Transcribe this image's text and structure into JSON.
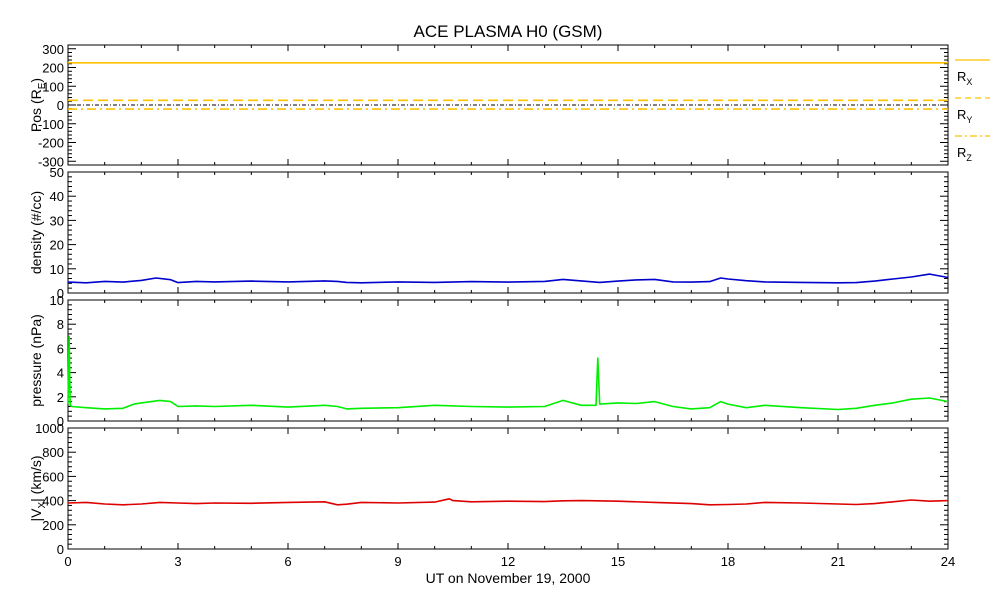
{
  "chart_data": {
    "title": "ACE PLASMA H0 (GSM)",
    "xlabel": "UT on November 19, 2000",
    "xlim": [
      0,
      24
    ],
    "xticks": [
      0,
      3,
      6,
      9,
      12,
      15,
      18,
      21,
      24
    ],
    "xtick_labels": [
      "0",
      "3",
      "6",
      "9",
      "12",
      "15",
      "18",
      "21",
      "24"
    ],
    "grid": false,
    "panels": [
      {
        "type": "line",
        "ylabel": "Pos (R",
        "ylabel_sub": "E",
        "ylabel_tail": ")",
        "ylim": [
          -320,
          320
        ],
        "yticks": [
          -300,
          -200,
          -100,
          0,
          100,
          200,
          300
        ],
        "ytick_labels": [
          "-300",
          "-200",
          "-100",
          "0",
          "100",
          "200",
          "300"
        ],
        "zero_line": true,
        "legend": [
          {
            "text": "R",
            "sub": "X",
            "color": "#FFC000",
            "dash": "solid"
          },
          {
            "text": "R",
            "sub": "Y",
            "color": "#FFC000",
            "dash": "dashed"
          },
          {
            "text": "R",
            "sub": "Z",
            "color": "#FFC000",
            "dash": "dashdot"
          }
        ],
        "series": [
          {
            "name": "R_X",
            "color": "#FFC000",
            "dash": "solid",
            "x": [
              0,
              24
            ],
            "y": [
              225,
              225
            ]
          },
          {
            "name": "R_Y",
            "color": "#FFC000",
            "dash": "dashed",
            "x": [
              0,
              24
            ],
            "y": [
              25,
              25
            ]
          },
          {
            "name": "R_Z",
            "color": "#FFC000",
            "dash": "dashdot",
            "x": [
              0,
              24
            ],
            "y": [
              -22,
              -22
            ]
          }
        ]
      },
      {
        "type": "line",
        "ylabel": "density (#/cc)",
        "ylim": [
          0,
          50
        ],
        "yticks": [
          0,
          10,
          20,
          30,
          40,
          50
        ],
        "ytick_labels": [
          "0",
          "10",
          "20",
          "30",
          "40",
          "50"
        ],
        "series": [
          {
            "name": "density",
            "color": "#0000CC",
            "x": [
              0,
              0.5,
              1,
              1.5,
              2,
              2.4,
              2.8,
              3,
              3.5,
              4,
              5,
              6,
              7,
              7.35,
              7.6,
              8,
              9,
              10,
              11,
              12,
              13,
              13.5,
              14,
              14.5,
              15,
              15.5,
              16,
              16.5,
              17,
              17.5,
              17.8,
              18,
              18.5,
              19,
              20,
              21,
              21.5,
              22,
              22.5,
              23,
              23.5,
              24
            ],
            "y": [
              4.5,
              4.2,
              4.8,
              4.5,
              5.2,
              6.2,
              5.5,
              4.3,
              4.8,
              4.6,
              4.9,
              4.6,
              5.0,
              4.8,
              4.4,
              4.2,
              4.6,
              4.4,
              4.7,
              4.5,
              4.8,
              5.6,
              5.0,
              4.4,
              4.9,
              5.4,
              5.6,
              4.6,
              4.5,
              4.7,
              6.2,
              5.8,
              5.1,
              4.6,
              4.4,
              4.2,
              4.3,
              4.9,
              5.8,
              6.6,
              7.8,
              6.4
            ]
          }
        ]
      },
      {
        "type": "line",
        "ylabel": "pressure (nPa)",
        "ylim": [
          0,
          10
        ],
        "yticks": [
          0,
          2,
          4,
          6,
          8,
          10
        ],
        "ytick_labels": [
          "0",
          "2",
          "4",
          "6",
          "8",
          "10"
        ],
        "series": [
          {
            "name": "pressure",
            "color": "#00EE00",
            "x": [
              0,
              0.03,
              0.06,
              0.1,
              0.5,
              1,
              1.5,
              1.8,
              2,
              2.5,
              2.8,
              3,
              3.5,
              4,
              5,
              6,
              7,
              7.35,
              7.6,
              8,
              9,
              10,
              11,
              12,
              13,
              13.5,
              14,
              14.4,
              14.45,
              14.5,
              15,
              15.5,
              16,
              16.5,
              17,
              17.5,
              17.8,
              18,
              18.5,
              19,
              20,
              21,
              21.5,
              22,
              22.5,
              23,
              23.5,
              24
            ],
            "y": [
              1.4,
              7.0,
              1.3,
              1.2,
              1.1,
              1.0,
              1.05,
              1.4,
              1.5,
              1.7,
              1.6,
              1.2,
              1.25,
              1.2,
              1.3,
              1.15,
              1.3,
              1.2,
              1.0,
              1.05,
              1.1,
              1.3,
              1.2,
              1.15,
              1.2,
              1.7,
              1.3,
              1.3,
              5.2,
              1.4,
              1.5,
              1.45,
              1.6,
              1.2,
              1.0,
              1.1,
              1.6,
              1.4,
              1.1,
              1.3,
              1.1,
              0.95,
              1.05,
              1.3,
              1.5,
              1.8,
              1.9,
              1.6
            ]
          }
        ]
      },
      {
        "type": "line",
        "ylabel": "|V",
        "ylabel_sub": "X",
        "ylabel_tail": "| (km/s)",
        "ylim": [
          0,
          1000
        ],
        "yticks": [
          0,
          200,
          400,
          600,
          800,
          1000
        ],
        "ytick_labels": [
          "0",
          "200",
          "400",
          "600",
          "800",
          "1000"
        ],
        "series": [
          {
            "name": "|V_X|",
            "color": "#DD0000",
            "x": [
              0,
              0.5,
              1,
              1.5,
              2,
              2.5,
              3,
              3.5,
              4,
              5,
              6,
              7,
              7.35,
              7.6,
              8,
              9,
              10,
              10.4,
              10.5,
              11,
              12,
              13,
              13.5,
              14,
              15,
              16,
              17,
              17.5,
              18,
              18.5,
              19,
              20,
              21,
              21.5,
              22,
              22.5,
              23,
              23.5,
              24
            ],
            "y": [
              380,
              385,
              372,
              365,
              372,
              385,
              380,
              375,
              380,
              378,
              385,
              390,
              365,
              370,
              385,
              380,
              388,
              415,
              400,
              390,
              395,
              392,
              398,
              400,
              395,
              385,
              375,
              365,
              368,
              372,
              385,
              380,
              372,
              368,
              375,
              390,
              405,
              395,
              400
            ]
          }
        ]
      }
    ]
  }
}
